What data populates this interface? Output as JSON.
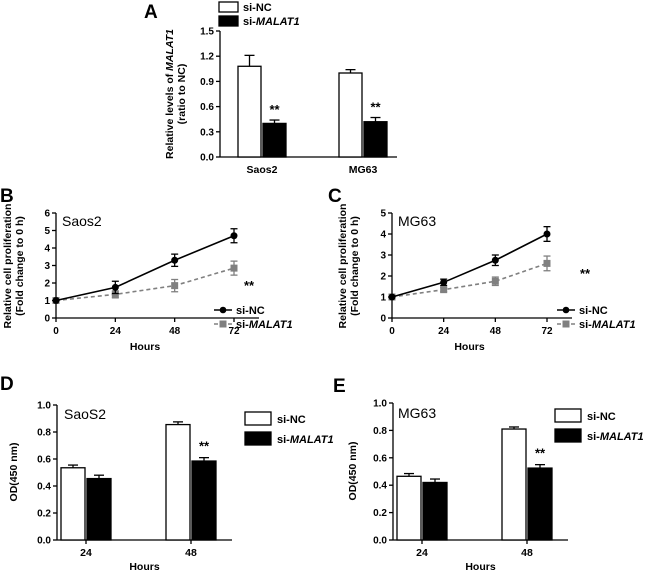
{
  "panels": {
    "A": {
      "label": "A"
    },
    "B": {
      "label": "B"
    },
    "C": {
      "label": "C"
    },
    "D": {
      "label": "D"
    },
    "E": {
      "label": "E"
    }
  },
  "chart_data": [
    {
      "id": "A",
      "type": "bar",
      "title": "",
      "categories": [
        "Saos2",
        "MG63"
      ],
      "series": [
        {
          "name": "si-NC",
          "values": [
            1.08,
            1.0
          ],
          "errors": [
            0.13,
            0.04
          ],
          "fill": "#ffffff"
        },
        {
          "name": "si-MALAT1",
          "values": [
            0.4,
            0.42
          ],
          "errors": [
            0.04,
            0.05
          ],
          "fill": "#000000"
        }
      ],
      "ylabel_lines": [
        "Relative levels of MALAT1",
        "(ratio to NC)"
      ],
      "xlabel": "",
      "ylim": [
        0,
        1.5
      ],
      "yticks": [
        "0.0",
        "0.3",
        "0.6",
        "0.9",
        "1.2",
        "1.5"
      ],
      "significance": "**",
      "legend": "top"
    },
    {
      "id": "B",
      "type": "line",
      "title": "Saos2",
      "x": [
        0,
        24,
        48,
        72
      ],
      "xticks": [
        "0",
        "24",
        "48",
        "72"
      ],
      "series": [
        {
          "name": "si-NC",
          "values": [
            1.0,
            1.75,
            3.3,
            4.7
          ],
          "errors": [
            0.0,
            0.35,
            0.35,
            0.4
          ],
          "color": "#000000",
          "dash": false,
          "marker": "circle"
        },
        {
          "name": "si-MALAT1",
          "values": [
            1.0,
            1.35,
            1.85,
            2.85
          ],
          "errors": [
            0.0,
            0.2,
            0.35,
            0.4
          ],
          "color": "#808080",
          "dash": true,
          "marker": "square"
        }
      ],
      "ylabel_lines": [
        "Relative cell proliferation",
        "(Fold change to 0 h)"
      ],
      "xlabel": "Hours",
      "ylim": [
        0,
        6
      ],
      "xlim": [
        0,
        72
      ],
      "yticks": [
        "0",
        "1",
        "2",
        "3",
        "4",
        "5",
        "6"
      ],
      "significance": "**",
      "legend": "right"
    },
    {
      "id": "C",
      "type": "line",
      "title": "MG63",
      "x": [
        0,
        24,
        48,
        72
      ],
      "xticks": [
        "0",
        "24",
        "48",
        "72"
      ],
      "series": [
        {
          "name": "si-NC",
          "values": [
            1.0,
            1.7,
            2.75,
            4.0
          ],
          "errors": [
            0.0,
            0.15,
            0.25,
            0.35
          ],
          "color": "#000000",
          "dash": false,
          "marker": "circle"
        },
        {
          "name": "si-MALAT1",
          "values": [
            1.0,
            1.35,
            1.75,
            2.6
          ],
          "errors": [
            0.0,
            0.1,
            0.2,
            0.35
          ],
          "color": "#808080",
          "dash": true,
          "marker": "square"
        }
      ],
      "ylabel_lines": [
        "Relative cell proliferation",
        "(Fold change to 0 h)"
      ],
      "xlabel": "Hours",
      "ylim": [
        0,
        5
      ],
      "xlim": [
        0,
        72
      ],
      "yticks": [
        "0",
        "1",
        "2",
        "3",
        "4",
        "5"
      ],
      "significance": "**",
      "legend": "right"
    },
    {
      "id": "D",
      "type": "bar",
      "title": "SaoS2",
      "categories": [
        "24",
        "48"
      ],
      "series": [
        {
          "name": "si-NC",
          "values": [
            0.535,
            0.855
          ],
          "errors": [
            0.02,
            0.02
          ],
          "fill": "#ffffff"
        },
        {
          "name": "si-MALAT1",
          "values": [
            0.455,
            0.585
          ],
          "errors": [
            0.025,
            0.025
          ],
          "fill": "#000000"
        }
      ],
      "ylabel_lines": [
        "OD(450 nm)"
      ],
      "xlabel": "Hours",
      "ylim": [
        0,
        1.0
      ],
      "yticks": [
        "0.0",
        "0.2",
        "0.4",
        "0.6",
        "0.8",
        "1.0"
      ],
      "significance": "**",
      "legend": "top-right"
    },
    {
      "id": "E",
      "type": "bar",
      "title": "MG63",
      "categories": [
        "24",
        "48"
      ],
      "series": [
        {
          "name": "si-NC",
          "values": [
            0.465,
            0.81
          ],
          "errors": [
            0.02,
            0.015
          ],
          "fill": "#ffffff"
        },
        {
          "name": "si-MALAT1",
          "values": [
            0.42,
            0.525
          ],
          "errors": [
            0.025,
            0.025
          ],
          "fill": "#000000"
        }
      ],
      "ylabel_lines": [
        "OD(450 nm)"
      ],
      "xlabel": "Hours",
      "ylim": [
        0,
        1.0
      ],
      "yticks": [
        "0.0",
        "0.2",
        "0.4",
        "0.6",
        "0.8",
        "1.0"
      ],
      "significance": "**",
      "legend": "top-right"
    }
  ]
}
